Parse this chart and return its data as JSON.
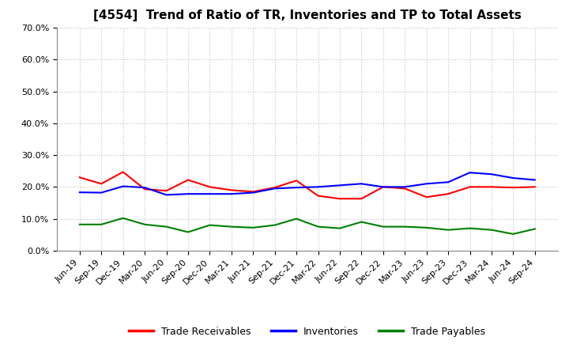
{
  "title": "[4554]  Trend of Ratio of TR, Inventories and TP to Total Assets",
  "x_labels": [
    "Jun-19",
    "Sep-19",
    "Dec-19",
    "Mar-20",
    "Jun-20",
    "Sep-20",
    "Dec-20",
    "Mar-21",
    "Jun-21",
    "Sep-21",
    "Dec-21",
    "Mar-22",
    "Jun-22",
    "Sep-22",
    "Dec-22",
    "Mar-23",
    "Jun-23",
    "Sep-23",
    "Dec-23",
    "Mar-24",
    "Jun-24",
    "Sep-24"
  ],
  "trade_receivables": [
    0.23,
    0.21,
    0.247,
    0.193,
    0.188,
    0.222,
    0.2,
    0.19,
    0.185,
    0.198,
    0.22,
    0.172,
    0.163,
    0.163,
    0.2,
    0.195,
    0.168,
    0.178,
    0.2,
    0.2,
    0.198,
    0.2
  ],
  "inventories": [
    0.183,
    0.182,
    0.202,
    0.198,
    0.175,
    0.178,
    0.178,
    0.178,
    0.182,
    0.195,
    0.198,
    0.2,
    0.205,
    0.21,
    0.2,
    0.2,
    0.21,
    0.215,
    0.245,
    0.24,
    0.228,
    0.222
  ],
  "trade_payables": [
    0.082,
    0.082,
    0.102,
    0.082,
    0.075,
    0.058,
    0.08,
    0.075,
    0.072,
    0.08,
    0.1,
    0.075,
    0.07,
    0.09,
    0.075,
    0.075,
    0.072,
    0.065,
    0.07,
    0.065,
    0.052,
    0.068
  ],
  "tr_color": "#ff0000",
  "inv_color": "#0000ff",
  "tp_color": "#008000",
  "ylim": [
    0.0,
    0.7
  ],
  "yticks": [
    0.0,
    0.1,
    0.2,
    0.3,
    0.4,
    0.5,
    0.6,
    0.7
  ],
  "background_color": "#ffffff",
  "grid_color": "#bbbbbb",
  "legend_labels": [
    "Trade Receivables",
    "Inventories",
    "Trade Payables"
  ],
  "title_fontsize": 11,
  "tick_fontsize": 8,
  "legend_fontsize": 9
}
